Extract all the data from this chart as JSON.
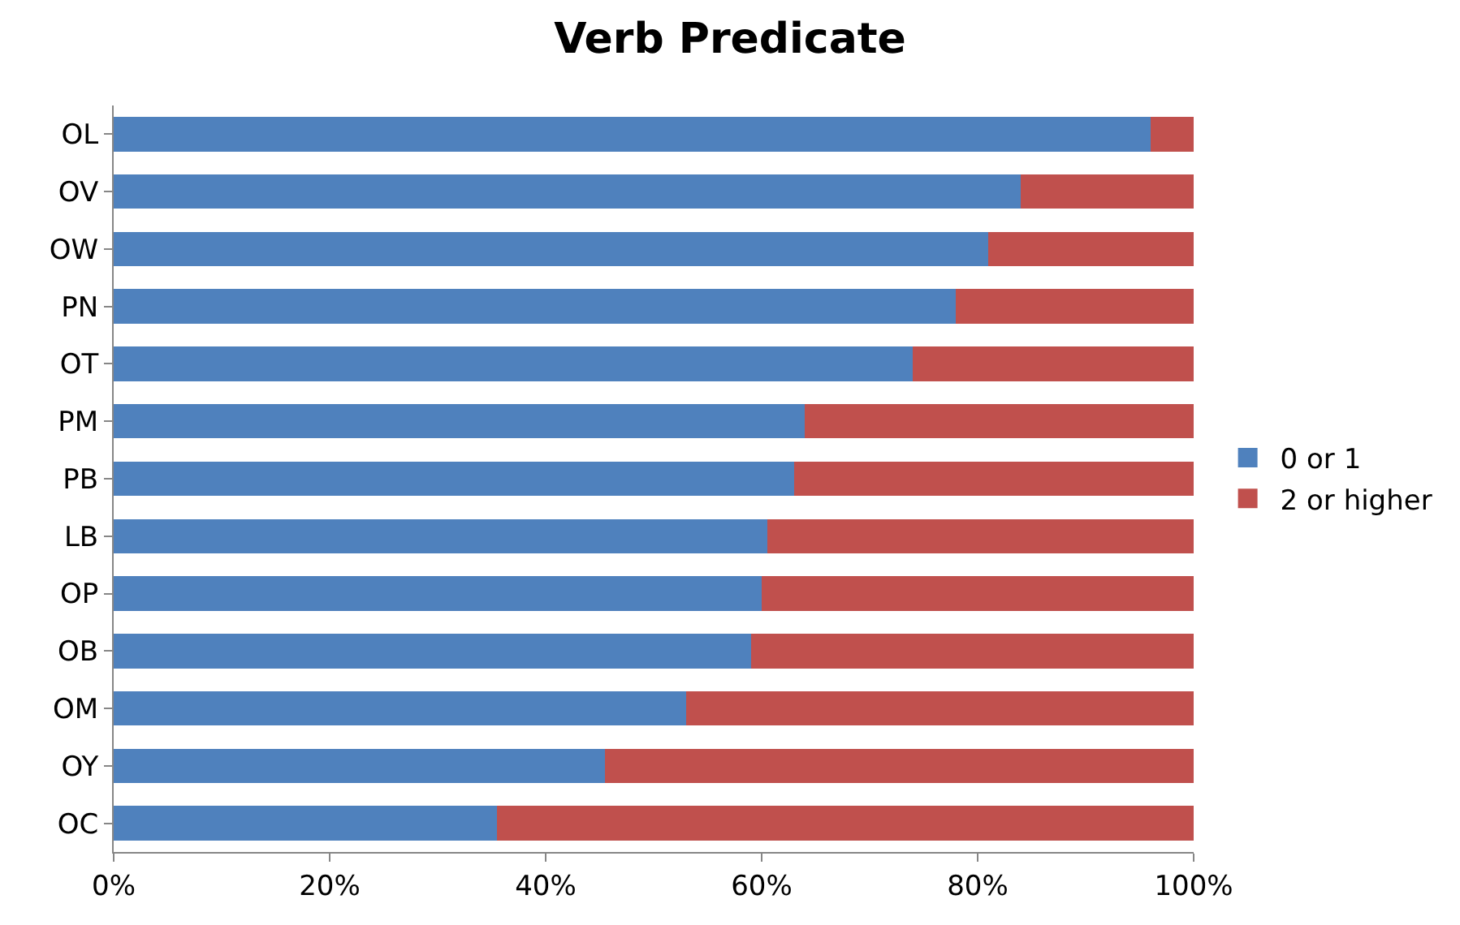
{
  "chart_data": {
    "type": "bar",
    "title": "Verb Predicate",
    "orientation": "horizontal",
    "stacked": true,
    "categories": [
      "OL",
      "OV",
      "OW",
      "PN",
      "OT",
      "PM",
      "PB",
      "LB",
      "OP",
      "OB",
      "OM",
      "OY",
      "OC"
    ],
    "series": [
      {
        "name": "0 or 1",
        "color": "#4f81bd",
        "values": [
          96,
          84,
          81,
          78,
          74,
          64,
          63,
          60.5,
          60,
          59,
          53,
          45.5,
          35.5
        ]
      },
      {
        "name": "2 or higher",
        "color": "#c0504d",
        "values": [
          4,
          16,
          19,
          22,
          26,
          36,
          37,
          39.5,
          40,
          41,
          47,
          54.5,
          64.5
        ]
      }
    ],
    "xlim": [
      0,
      100
    ],
    "xticks": [
      {
        "value": 0,
        "label": "0%"
      },
      {
        "value": 20,
        "label": "20%"
      },
      {
        "value": 40,
        "label": "40%"
      },
      {
        "value": 60,
        "label": "60%"
      },
      {
        "value": 80,
        "label": "80%"
      },
      {
        "value": 100,
        "label": "100%"
      }
    ],
    "legend": "right"
  }
}
